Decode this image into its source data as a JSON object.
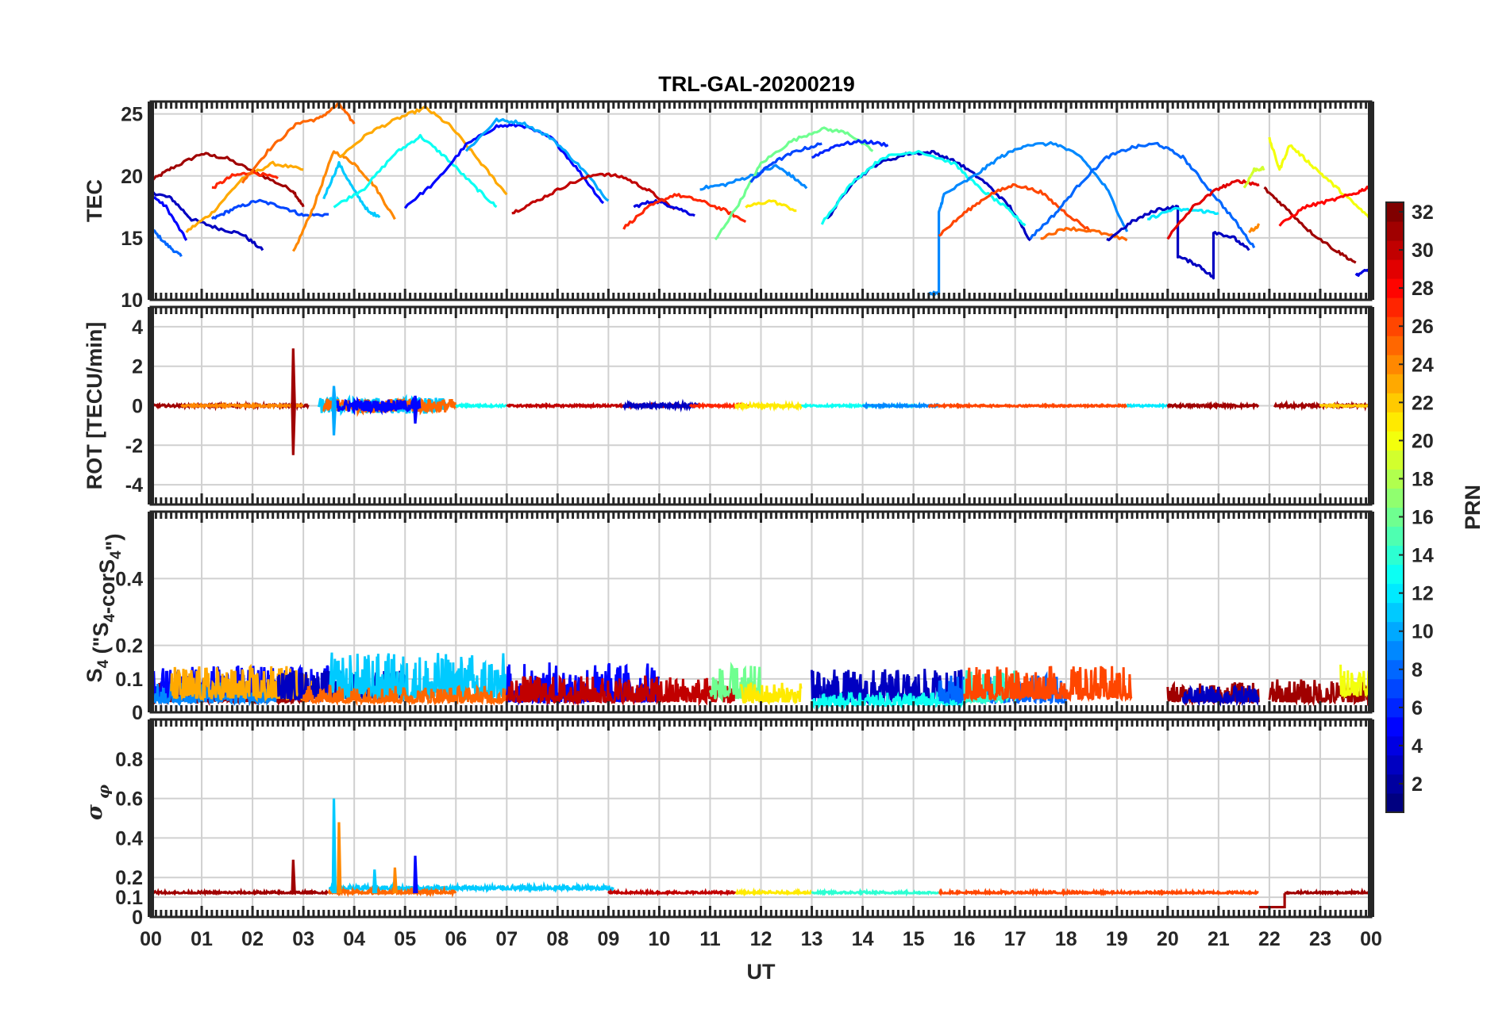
{
  "chart_data": [
    {
      "type": "line",
      "title": "TRL-GAL-20200219",
      "xlabel": "UT",
      "ylabel": "TEC",
      "xlim": [
        0,
        24
      ],
      "ylim": [
        10,
        26
      ],
      "yticks": [
        10,
        15,
        20,
        25
      ],
      "grid": true,
      "series": [
        {
          "prn": 31,
          "x": [
            0.0,
            0.4,
            1.0,
            1.5,
            2.2,
            2.8,
            3.0
          ],
          "y": [
            19.6,
            20.6,
            21.8,
            21.4,
            20.0,
            18.8,
            17.5
          ]
        },
        {
          "prn": 5,
          "x": [
            0.0,
            0.3,
            0.7
          ],
          "y": [
            18.5,
            17.5,
            14.8
          ]
        },
        {
          "prn": 8,
          "x": [
            0.0,
            0.3,
            0.6
          ],
          "y": [
            15.8,
            14.5,
            13.5
          ]
        },
        {
          "prn": 3,
          "x": [
            0.0,
            0.4,
            0.8,
            1.3,
            1.8,
            2.2
          ],
          "y": [
            18.7,
            18.2,
            16.5,
            15.8,
            15.3,
            14.0
          ]
        },
        {
          "prn": 23,
          "x": [
            0.7,
            1.2,
            1.8,
            2.4,
            3.0
          ],
          "y": [
            15.5,
            17.0,
            19.8,
            21.0,
            20.5
          ]
        },
        {
          "prn": 7,
          "x": [
            1.2,
            1.6,
            2.1,
            2.6,
            3.0,
            3.5
          ],
          "y": [
            16.5,
            17.3,
            18.0,
            17.5,
            16.8,
            16.9
          ]
        },
        {
          "prn": 27,
          "x": [
            1.2,
            1.6,
            2.0,
            2.5
          ],
          "y": [
            19.0,
            20.0,
            20.3,
            19.8
          ]
        },
        {
          "prn": 24,
          "x": [
            2.8,
            3.2,
            3.6,
            4.0,
            4.4,
            4.8
          ],
          "y": [
            13.8,
            17.5,
            22.0,
            21.0,
            19.2,
            16.5
          ]
        },
        {
          "prn": 25,
          "x": [
            1.8,
            2.3,
            2.9,
            3.3,
            3.7,
            4.0
          ],
          "y": [
            19.5,
            22.0,
            24.3,
            24.6,
            25.8,
            24.2
          ]
        },
        {
          "prn": 11,
          "x": [
            3.4,
            3.7,
            4.0,
            4.3,
            4.5
          ],
          "y": [
            18.2,
            21.0,
            18.8,
            17.0,
            16.8
          ]
        },
        {
          "prn": 13,
          "x": [
            3.6,
            4.2,
            4.8,
            5.3,
            5.8,
            6.4,
            6.8
          ],
          "y": [
            17.5,
            19.0,
            21.8,
            23.2,
            21.5,
            19.0,
            17.5
          ]
        },
        {
          "prn": 23,
          "x": [
            3.7,
            4.3,
            4.9,
            5.4,
            5.9,
            6.5,
            7.0
          ],
          "y": [
            21.5,
            23.5,
            24.7,
            25.5,
            24.0,
            21.0,
            18.5
          ]
        },
        {
          "prn": 5,
          "x": [
            5.0,
            5.6,
            6.2,
            6.8,
            7.3,
            7.9,
            8.4,
            8.9
          ],
          "y": [
            17.5,
            19.5,
            22.5,
            24.0,
            24.1,
            23.0,
            20.5,
            17.8
          ]
        },
        {
          "prn": 10,
          "x": [
            6.2,
            6.8,
            7.3,
            7.9,
            8.5,
            9.0
          ],
          "y": [
            22.0,
            24.5,
            24.3,
            23.0,
            20.5,
            18.0
          ]
        },
        {
          "prn": 30,
          "x": [
            7.1,
            7.6,
            8.2,
            8.8,
            9.3,
            9.8,
            10.3
          ],
          "y": [
            17.0,
            18.0,
            19.3,
            20.2,
            19.9,
            18.8,
            17.3
          ]
        },
        {
          "prn": 4,
          "x": [
            9.5,
            9.9,
            10.3,
            10.7
          ],
          "y": [
            17.5,
            18.0,
            17.5,
            16.8
          ]
        },
        {
          "prn": 27,
          "x": [
            9.3,
            9.8,
            10.3,
            10.8,
            11.3,
            11.7
          ],
          "y": [
            15.8,
            17.5,
            18.5,
            18.0,
            17.2,
            16.3
          ]
        },
        {
          "prn": 9,
          "x": [
            10.8,
            11.3,
            11.8,
            12.3,
            12.6,
            12.9
          ],
          "y": [
            19.0,
            19.3,
            20.0,
            20.8,
            20.0,
            19.0
          ]
        },
        {
          "prn": 16,
          "x": [
            11.1,
            11.6,
            12.0,
            12.6,
            13.2,
            13.7,
            14.2
          ],
          "y": [
            14.8,
            18.0,
            21.0,
            22.8,
            23.8,
            23.5,
            22.0
          ]
        },
        {
          "prn": 21,
          "x": [
            11.7,
            12.2,
            12.7
          ],
          "y": [
            17.5,
            18.0,
            17.2
          ]
        },
        {
          "prn": 7,
          "x": [
            11.8,
            12.2,
            12.7,
            13.2
          ],
          "y": [
            19.5,
            21.0,
            22.0,
            22.6
          ]
        },
        {
          "prn": 3,
          "x": [
            13.3,
            13.8,
            14.3,
            14.9,
            15.4,
            15.9,
            16.4,
            16.9,
            17.3
          ],
          "y": [
            16.5,
            19.5,
            21.0,
            21.8,
            21.9,
            21.0,
            19.5,
            17.5,
            14.8
          ]
        },
        {
          "prn": 13,
          "x": [
            13.2,
            13.8,
            14.4,
            15.1,
            15.8,
            16.3,
            16.8,
            17.2
          ],
          "y": [
            16.2,
            19.5,
            21.5,
            22.0,
            21.0,
            19.0,
            17.5,
            16.0
          ]
        },
        {
          "prn": 6,
          "x": [
            13.0,
            13.5,
            14.0,
            14.5
          ],
          "y": [
            21.5,
            22.5,
            22.8,
            22.5
          ]
        },
        {
          "prn": 9,
          "x": [
            15.3,
            15.5,
            15.5,
            15.6,
            16.2,
            16.7,
            17.2,
            17.8,
            18.3,
            18.8,
            19.2
          ],
          "y": [
            10.5,
            10.5,
            17.0,
            18.5,
            20.0,
            21.5,
            22.5,
            22.6,
            21.5,
            19.0,
            15.5
          ]
        },
        {
          "prn": 26,
          "x": [
            15.5,
            16.0,
            16.5,
            17.0,
            17.5,
            18.0,
            18.5
          ],
          "y": [
            15.2,
            17.0,
            18.5,
            19.3,
            18.7,
            17.0,
            15.5
          ]
        },
        {
          "prn": 8,
          "x": [
            17.3,
            17.8,
            18.3,
            18.8,
            19.3,
            19.8,
            20.3,
            20.8,
            21.3,
            21.7
          ],
          "y": [
            15.0,
            17.0,
            19.5,
            21.5,
            22.3,
            22.6,
            21.5,
            19.0,
            16.5,
            14.2
          ]
        },
        {
          "prn": 25,
          "x": [
            17.5,
            18.0,
            18.6,
            19.2
          ],
          "y": [
            15.0,
            15.8,
            15.5,
            14.8
          ]
        },
        {
          "prn": 3,
          "x": [
            18.8,
            19.3,
            19.8,
            20.2,
            20.2,
            20.6,
            20.9,
            20.9,
            21.3,
            21.6
          ],
          "y": [
            14.8,
            16.3,
            17.3,
            17.5,
            13.5,
            12.8,
            11.8,
            15.5,
            15.0,
            14.0
          ]
        },
        {
          "prn": 12,
          "x": [
            19.6,
            20.1,
            20.6,
            21.0
          ],
          "y": [
            16.5,
            17.3,
            17.2,
            17.0
          ]
        },
        {
          "prn": 29,
          "x": [
            20.0,
            20.5,
            21.0,
            21.4,
            21.8
          ],
          "y": [
            15.0,
            17.5,
            19.0,
            19.6,
            19.3
          ]
        },
        {
          "prn": 19,
          "x": [
            21.5,
            21.7,
            21.9
          ],
          "y": [
            19.0,
            20.5,
            20.6
          ]
        },
        {
          "prn": 20,
          "x": [
            22.0,
            22.2,
            22.4,
            22.8,
            23.2,
            23.6,
            24.0
          ],
          "y": [
            23.0,
            20.5,
            22.5,
            21.0,
            19.5,
            18.0,
            16.5
          ]
        },
        {
          "prn": 31,
          "x": [
            21.9,
            22.3,
            22.8,
            23.3,
            23.7
          ],
          "y": [
            19.0,
            17.5,
            15.5,
            14.0,
            13.0
          ]
        },
        {
          "prn": 28,
          "x": [
            22.2,
            22.7,
            23.2,
            23.7,
            24.0
          ],
          "y": [
            16.0,
            17.5,
            18.0,
            18.6,
            19.2
          ]
        },
        {
          "prn": 24,
          "x": [
            21.6,
            21.8
          ],
          "y": [
            15.5,
            16.0
          ]
        },
        {
          "prn": 4,
          "x": [
            23.7,
            24.0
          ],
          "y": [
            12.0,
            12.5
          ]
        }
      ]
    },
    {
      "type": "line",
      "ylabel": "ROT [TECU/min]",
      "xlim": [
        0,
        24
      ],
      "ylim": [
        -5,
        5
      ],
      "yticks": [
        -4,
        -2,
        0,
        2,
        4
      ],
      "grid": true,
      "coverage": [
        {
          "prn": 31,
          "x0": 0.0,
          "x1": 3.1,
          "amp": 0.06
        },
        {
          "prn": 24,
          "x0": 0.6,
          "x1": 3.0,
          "amp": 0.05
        },
        {
          "prn": 11,
          "x0": 3.3,
          "x1": 5.8,
          "amp": 0.4
        },
        {
          "prn": 25,
          "x0": 3.4,
          "x1": 6.0,
          "amp": 0.35
        },
        {
          "prn": 5,
          "x0": 3.6,
          "x1": 5.3,
          "amp": 0.3
        },
        {
          "prn": 13,
          "x0": 6.0,
          "x1": 7.0,
          "amp": 0.05
        },
        {
          "prn": 30,
          "x0": 7.0,
          "x1": 10.5,
          "amp": 0.05
        },
        {
          "prn": 3,
          "x0": 9.3,
          "x1": 10.8,
          "amp": 0.12
        },
        {
          "prn": 27,
          "x0": 10.6,
          "x1": 11.8,
          "amp": 0.05
        },
        {
          "prn": 21,
          "x0": 11.5,
          "x1": 12.8,
          "amp": 0.1
        },
        {
          "prn": 13,
          "x0": 12.8,
          "x1": 15.2,
          "amp": 0.04
        },
        {
          "prn": 9,
          "x0": 14.0,
          "x1": 15.5,
          "amp": 0.05
        },
        {
          "prn": 26,
          "x0": 15.3,
          "x1": 19.3,
          "amp": 0.04
        },
        {
          "prn": 12,
          "x0": 19.2,
          "x1": 20.0,
          "amp": 0.04
        },
        {
          "prn": 31,
          "x0": 20.0,
          "x1": 21.8,
          "amp": 0.06
        },
        {
          "prn": 31,
          "x0": 22.1,
          "x1": 24.0,
          "amp": 0.07
        },
        {
          "prn": 22,
          "x0": 23.0,
          "x1": 24.0,
          "amp": 0.04
        }
      ],
      "spikes": [
        {
          "prn": 31,
          "x": 2.8,
          "y": [
            2.9,
            -2.5
          ]
        },
        {
          "prn": 10,
          "x": 3.6,
          "y": [
            1.0,
            -1.5
          ]
        },
        {
          "prn": 5,
          "x": 5.2,
          "y": [
            0.5,
            -0.9
          ]
        }
      ]
    },
    {
      "type": "line",
      "ylabel": "S4 (\"S4-corS4\")",
      "xlim": [
        0,
        24
      ],
      "ylim": [
        0,
        0.6
      ],
      "yticks": [
        0,
        0.1,
        0.2,
        0.4
      ],
      "grid": true,
      "coverage": [
        {
          "prn": 31,
          "x0": 0.0,
          "x1": 3.0,
          "base": 0.03,
          "amp": 0.06
        },
        {
          "prn": 5,
          "x0": 0.0,
          "x1": 3.5,
          "base": 0.04,
          "amp": 0.1
        },
        {
          "prn": 9,
          "x0": 0.0,
          "x1": 2.5,
          "base": 0.03,
          "amp": 0.06
        },
        {
          "prn": 23,
          "x0": 0.4,
          "x1": 3.2,
          "base": 0.04,
          "amp": 0.1
        },
        {
          "prn": 3,
          "x0": 2.5,
          "x1": 5.0,
          "base": 0.04,
          "amp": 0.09
        },
        {
          "prn": 11,
          "x0": 3.5,
          "x1": 7.0,
          "base": 0.04,
          "amp": 0.14
        },
        {
          "prn": 25,
          "x0": 3.0,
          "x1": 7.0,
          "base": 0.03,
          "amp": 0.05
        },
        {
          "prn": 5,
          "x0": 7.0,
          "x1": 10.0,
          "base": 0.03,
          "amp": 0.12
        },
        {
          "prn": 30,
          "x0": 7.0,
          "x1": 11.5,
          "base": 0.03,
          "amp": 0.08
        },
        {
          "prn": 16,
          "x0": 11.0,
          "x1": 12.0,
          "base": 0.04,
          "amp": 0.1
        },
        {
          "prn": 21,
          "x0": 11.6,
          "x1": 12.8,
          "base": 0.03,
          "amp": 0.06
        },
        {
          "prn": 3,
          "x0": 13.0,
          "x1": 16.0,
          "base": 0.03,
          "amp": 0.1
        },
        {
          "prn": 13,
          "x0": 13.0,
          "x1": 16.0,
          "base": 0.02,
          "amp": 0.04
        },
        {
          "prn": 8,
          "x0": 15.5,
          "x1": 18.0,
          "base": 0.03,
          "amp": 0.08
        },
        {
          "prn": 14,
          "x0": 16.0,
          "x1": 17.0,
          "base": 0.03,
          "amp": 0.1
        },
        {
          "prn": 26,
          "x0": 16.0,
          "x1": 19.3,
          "base": 0.04,
          "amp": 0.1
        },
        {
          "prn": 31,
          "x0": 20.0,
          "x1": 21.8,
          "base": 0.03,
          "amp": 0.06
        },
        {
          "prn": 3,
          "x0": 20.3,
          "x1": 21.8,
          "base": 0.03,
          "amp": 0.05
        },
        {
          "prn": 31,
          "x0": 22.0,
          "x1": 24.0,
          "base": 0.03,
          "amp": 0.07
        },
        {
          "prn": 20,
          "x0": 23.4,
          "x1": 24.0,
          "base": 0.05,
          "amp": 0.1
        }
      ]
    },
    {
      "type": "line",
      "ylabel": "σ φ",
      "xlabel": "UT",
      "xlim": [
        0,
        24
      ],
      "ylim": [
        0,
        1
      ],
      "yticks": [
        0,
        0.1,
        0.2,
        0.4,
        0.6,
        0.8
      ],
      "xtick_labels": [
        "00",
        "01",
        "02",
        "03",
        "04",
        "05",
        "06",
        "07",
        "08",
        "09",
        "10",
        "11",
        "12",
        "13",
        "14",
        "15",
        "16",
        "17",
        "18",
        "19",
        "20",
        "21",
        "22",
        "23",
        "00"
      ],
      "grid": true,
      "coverage": [
        {
          "prn": 31,
          "x0": 0.0,
          "x1": 3.5,
          "base": 0.12,
          "amp": 0.01
        },
        {
          "prn": 11,
          "x0": 3.5,
          "x1": 9.1,
          "base": 0.14,
          "amp": 0.02
        },
        {
          "prn": 25,
          "x0": 3.5,
          "x1": 6.0,
          "base": 0.12,
          "amp": 0.02
        },
        {
          "prn": 30,
          "x0": 9.0,
          "x1": 11.5,
          "base": 0.12,
          "amp": 0.01
        },
        {
          "prn": 21,
          "x0": 11.5,
          "x1": 13.0,
          "base": 0.12,
          "amp": 0.01
        },
        {
          "prn": 14,
          "x0": 13.0,
          "x1": 15.5,
          "base": 0.12,
          "amp": 0.01
        },
        {
          "prn": 26,
          "x0": 15.5,
          "x1": 21.8,
          "base": 0.12,
          "amp": 0.01
        },
        {
          "prn": 31,
          "x0": 22.3,
          "x1": 24.0,
          "base": 0.12,
          "amp": 0.01
        }
      ],
      "spikes": [
        {
          "prn": 31,
          "x": 2.8,
          "y": [
            0.29
          ]
        },
        {
          "prn": 11,
          "x": 3.6,
          "y": [
            0.6
          ]
        },
        {
          "prn": 24,
          "x": 3.7,
          "y": [
            0.48
          ]
        },
        {
          "prn": 5,
          "x": 5.2,
          "y": [
            0.31
          ]
        },
        {
          "prn": 24,
          "x": 4.8,
          "y": [
            0.25
          ]
        },
        {
          "prn": 11,
          "x": 4.4,
          "y": [
            0.24
          ]
        }
      ],
      "step": {
        "prn": 31,
        "x": [
          21.8,
          22.3,
          22.3
        ],
        "y": [
          0.05,
          0.05,
          0.12
        ]
      }
    }
  ],
  "colorbar": {
    "label": "PRN",
    "min": 1,
    "max": 32,
    "ticks": [
      2,
      4,
      6,
      8,
      10,
      12,
      14,
      16,
      18,
      20,
      22,
      24,
      26,
      28,
      30,
      32
    ],
    "colormap": "jet"
  }
}
